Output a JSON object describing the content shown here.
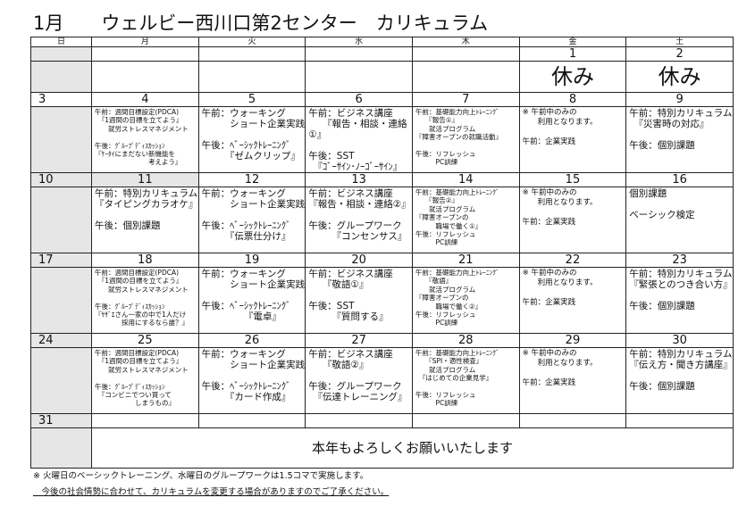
{
  "title": "1月　　ウェルビー西川口第2センター　カリキュラム",
  "weekdays": [
    "日",
    "月",
    "火",
    "水",
    "木",
    "金",
    "土"
  ],
  "first_row": {
    "dates": [
      "",
      "",
      "",
      "",
      "",
      "1",
      "2"
    ],
    "labels": [
      "",
      "",
      "",
      "",
      "",
      "休み",
      "休み"
    ]
  },
  "weeks": [
    {
      "dates": [
        "3",
        "4",
        "5",
        "6",
        "7",
        "8",
        "9"
      ],
      "cells": [
        [],
        [
          "午前：週間目標設定(PDCA)",
          "　『1週間の目標を立てよう』",
          "　　就労ストレスマネジメント",
          "",
          "午後：ｸﾞﾙｰﾌﾟﾃﾞｨｽｶｯｼｮﾝ",
          "『ｹｰﾀｲにまだない新機能を",
          "　　　　　　　　考えよう』"
        ],
        [
          "午前：ウォーキング",
          "　　　ショート企業実践",
          "",
          "午後：ﾍﾞｰｼｯｸﾄﾚｰﾆﾝｸﾞ",
          "　　　『ゼムクリップ』"
        ],
        [
          "午前：ビジネス講座",
          "　　『報告・相談・連絡",
          "①』",
          "",
          "午後：SST",
          "　『ｺﾞｰｻｲﾝ･ﾉｰｺﾞｰｻｲﾝ』"
        ],
        [
          "午前：基礎能力向上ﾄﾚｰﾆﾝｸﾞ",
          "　　『報告①』",
          "　　就活プログラム",
          "『障害オープンの就職活動』",
          "",
          "午後：リフレッシュ",
          "　　　PC訓練"
        ],
        [
          "※ 午前中のみの",
          "　　利用となります。",
          "",
          "午前：企業実践"
        ],
        [
          "午前：特別カリキュラム",
          "　『災害時の対応』",
          "",
          "午後：個別課題"
        ]
      ]
    },
    {
      "dates": [
        "10",
        "11",
        "12",
        "13",
        "14",
        "15",
        "16"
      ],
      "cells": [
        [],
        [
          "午前：特別カリキュラム",
          "『タイピングカラオケ』",
          "",
          "午後：個別課題"
        ],
        [
          "午前：ウォーキング",
          "　　　ショート企業実践",
          "",
          "午後：ﾍﾞｰｼｯｸﾄﾚｰﾆﾝｸﾞ",
          "　　　『伝票仕分け』"
        ],
        [
          "午前：ビジネス講座",
          "『報告・相談・連絡②』",
          "",
          "午後：グループワーク",
          "　　　『コンセンサス』"
        ],
        [
          "午前：基礎能力向上ﾄﾚｰﾆﾝｸﾞ",
          "　　『報告②』",
          "　　就活プログラム",
          "『障害オープンの",
          "　　　職場で働く①』",
          "午後：リフレッシュ",
          "　　　PC訓練"
        ],
        [
          "※ 午前中のみの",
          "　　利用となります。",
          "",
          "午前：企業実践"
        ],
        [
          "個別課題",
          "",
          "ベーシック検定"
        ]
      ]
    },
    {
      "dates": [
        "17",
        "18",
        "19",
        "20",
        "21",
        "22",
        "23"
      ],
      "cells": [
        [],
        [
          "午前：週間目標設定(PDCA)",
          "　『1週間の目標を立てよう』",
          "　　就労ストレスマネジメント",
          "",
          "午後：ｸﾞﾙｰﾌﾟﾃﾞｨｽｶｯｼｮﾝ",
          "『ｻｻﾞｴさん一家の中で1人だけ",
          "　　　　採用にするなら誰？』"
        ],
        [
          "午前：ウォーキング",
          "　　　ショート企業実践",
          "",
          "午後：ﾍﾞｰｼｯｸﾄﾚｰﾆﾝｸﾞ",
          "　　　　　『電卓』"
        ],
        [
          "午前：ビジネス講座",
          "　　『敬語①』",
          "",
          "午後：SST",
          "　　　『質問する』"
        ],
        [
          "午前：基礎能力向上ﾄﾚｰﾆﾝｸﾞ",
          "　　『敬語』",
          "　　就活プログラム",
          "『障害オープンの",
          "　　　職場で働く②』",
          "午後：リフレッシュ",
          "　　　PC訓練"
        ],
        [
          "※ 午前中のみの",
          "　　利用となります。",
          "",
          "午前：企業実践"
        ],
        [
          "午前：特別カリキュラム",
          "『緊張とのつき合い方』",
          "",
          "午後：個別課題"
        ]
      ]
    },
    {
      "dates": [
        "24",
        "25",
        "26",
        "27",
        "28",
        "29",
        "30"
      ],
      "cells": [
        [],
        [
          "午前：週間目標設定(PDCA)",
          "　『1週間の目標を立てよう』",
          "　　就労ストレスマネジメント",
          "",
          "午後：ｸﾞﾙｰﾌﾟﾃﾞｨｽｶｯｼｮﾝ",
          "　『コンビニでつい買って",
          "　　　　　　しまうもの』"
        ],
        [
          "午前：ウォーキング",
          "　　　ショート企業実践",
          "",
          "午後：ﾍﾞｰｼｯｸﾄﾚｰﾆﾝｸﾞ",
          "　　　『カード作成』"
        ],
        [
          "午前：ビジネス講座",
          "　　『敬語②』",
          "",
          "午後：グループワーク",
          "　『伝達トレーニング』"
        ],
        [
          "午前：基礎能力向上ﾄﾚｰﾆﾝｸﾞ",
          "　　『SPI・適性検査』",
          "　　就活プログラム",
          "　『はじめての企業見学』",
          "",
          "午後：リフレッシュ",
          "　　　PC訓練"
        ],
        [
          "※ 午前中のみの",
          "　　利用となります。",
          "",
          "午前：企業実践"
        ],
        [
          "午前：特別カリキュラム",
          "『伝え方・聞き方講座』",
          "",
          "午後：個別課題"
        ]
      ]
    }
  ],
  "last_row": {
    "date": "31",
    "message": "本年もよろしくお願いいたします"
  },
  "notes": [
    "※ 火曜日のベーシックトレーニング、水曜日のグループワークは1.5コマで実施します。",
    "　今後の社会情勢に合わせて、カリキュラムを変更する場合がありますのでご了承ください。"
  ],
  "colors": {
    "sunday_bg": "#e6e6e6",
    "border": "#222222"
  }
}
